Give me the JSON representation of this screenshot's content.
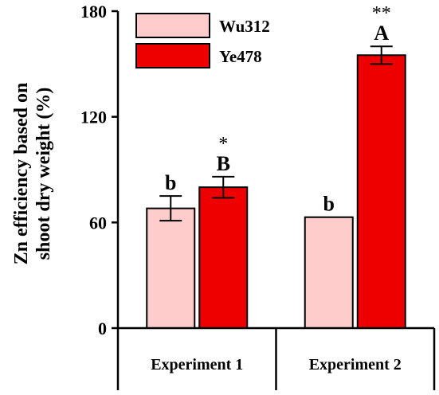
{
  "chart_data": {
    "type": "bar",
    "title": "",
    "xlabel": "",
    "ylabel": "Zn efficiency based on shoot dry weight (%)",
    "ylabel_lines": [
      "Zn efficiency based on",
      "shoot dry weight (%)"
    ],
    "ylim": [
      0,
      180
    ],
    "yticks": [
      0,
      60,
      120,
      180
    ],
    "grid": false,
    "legend_position": "top-left",
    "categories": [
      "Experiment 1",
      "Experiment 2"
    ],
    "series": [
      {
        "name": "Wu312",
        "color": "#FFCCCC",
        "values": [
          68,
          63
        ],
        "errors": [
          7,
          0
        ],
        "letters": [
          "b",
          "b"
        ],
        "stars": [
          "",
          ""
        ]
      },
      {
        "name": "Ye478",
        "color": "#EE0000",
        "values": [
          80,
          155
        ],
        "errors": [
          6,
          5
        ],
        "letters": [
          "B",
          "A"
        ],
        "stars": [
          "*",
          "**"
        ]
      }
    ]
  }
}
